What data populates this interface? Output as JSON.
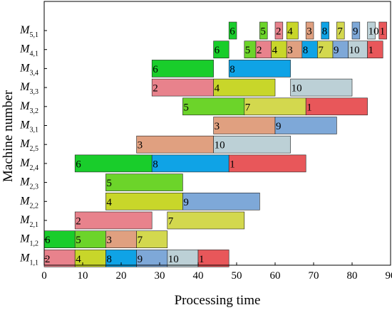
{
  "chart_data": {
    "type": "gantt",
    "xlabel": "Processing time",
    "ylabel": "Machine number",
    "xlim": [
      0,
      90
    ],
    "xticks": [
      0,
      10,
      20,
      30,
      40,
      50,
      60,
      70,
      80,
      90
    ],
    "grid": false,
    "job_colors": {
      "1": "#e8575a",
      "2": "#e8828c",
      "3": "#e0a080",
      "4": "#c8d62a",
      "5": "#6cd42a",
      "6": "#19cd2b",
      "7": "#d3d84e",
      "8": "#0fa3e6",
      "9": "#7ea8d8",
      "10": "#bcd0d6"
    },
    "machines": [
      {
        "name": "M",
        "sub": "5,1",
        "ops": [
          {
            "job": "6",
            "start": 48,
            "end": 50
          },
          {
            "job": "5",
            "start": 56,
            "end": 58
          },
          {
            "job": "2",
            "start": 60,
            "end": 62
          },
          {
            "job": "4",
            "start": 63,
            "end": 66
          },
          {
            "job": "3",
            "start": 68,
            "end": 70
          },
          {
            "job": "8",
            "start": 72,
            "end": 74
          },
          {
            "job": "7",
            "start": 76,
            "end": 78
          },
          {
            "job": "9",
            "start": 80,
            "end": 82
          },
          {
            "job": "10",
            "start": 84,
            "end": 86
          },
          {
            "job": "1",
            "start": 87,
            "end": 89
          }
        ]
      },
      {
        "name": "M",
        "sub": "4,1",
        "ops": [
          {
            "job": "6",
            "start": 44,
            "end": 48
          },
          {
            "job": "5",
            "start": 52,
            "end": 55
          },
          {
            "job": "2",
            "start": 55,
            "end": 59
          },
          {
            "job": "4",
            "start": 59,
            "end": 63
          },
          {
            "job": "3",
            "start": 63,
            "end": 67
          },
          {
            "job": "8",
            "start": 67,
            "end": 71
          },
          {
            "job": "7",
            "start": 71,
            "end": 75
          },
          {
            "job": "9",
            "start": 75,
            "end": 79
          },
          {
            "job": "10",
            "start": 79,
            "end": 84
          },
          {
            "job": "1",
            "start": 84,
            "end": 88
          }
        ]
      },
      {
        "name": "M",
        "sub": "3,4",
        "ops": [
          {
            "job": "6",
            "start": 28,
            "end": 44
          },
          {
            "job": "8",
            "start": 48,
            "end": 64
          }
        ]
      },
      {
        "name": "M",
        "sub": "3,3",
        "ops": [
          {
            "job": "2",
            "start": 28,
            "end": 44
          },
          {
            "job": "4",
            "start": 44,
            "end": 60
          },
          {
            "job": "10",
            "start": 64,
            "end": 80
          }
        ]
      },
      {
        "name": "M",
        "sub": "3,2",
        "ops": [
          {
            "job": "5",
            "start": 36,
            "end": 52
          },
          {
            "job": "7",
            "start": 52,
            "end": 68
          },
          {
            "job": "1",
            "start": 68,
            "end": 84
          }
        ]
      },
      {
        "name": "M",
        "sub": "3,1",
        "ops": [
          {
            "job": "3",
            "start": 44,
            "end": 60
          },
          {
            "job": "9",
            "start": 60,
            "end": 76
          }
        ]
      },
      {
        "name": "M",
        "sub": "2,5",
        "ops": [
          {
            "job": "3",
            "start": 24,
            "end": 44
          },
          {
            "job": "10",
            "start": 44,
            "end": 64
          }
        ]
      },
      {
        "name": "M",
        "sub": "2,4",
        "ops": [
          {
            "job": "6",
            "start": 8,
            "end": 28
          },
          {
            "job": "8",
            "start": 28,
            "end": 48
          },
          {
            "job": "1",
            "start": 48,
            "end": 68
          }
        ]
      },
      {
        "name": "M",
        "sub": "2,3",
        "ops": [
          {
            "job": "5",
            "start": 16,
            "end": 36
          }
        ]
      },
      {
        "name": "M",
        "sub": "2,2",
        "ops": [
          {
            "job": "4",
            "start": 16,
            "end": 36
          },
          {
            "job": "9",
            "start": 36,
            "end": 56
          }
        ]
      },
      {
        "name": "M",
        "sub": "2,1",
        "ops": [
          {
            "job": "2",
            "start": 8,
            "end": 28
          },
          {
            "job": "7",
            "start": 32,
            "end": 52
          }
        ]
      },
      {
        "name": "M",
        "sub": "1,2",
        "ops": [
          {
            "job": "6",
            "start": 0,
            "end": 8
          },
          {
            "job": "5",
            "start": 8,
            "end": 16
          },
          {
            "job": "3",
            "start": 16,
            "end": 24
          },
          {
            "job": "7",
            "start": 24,
            "end": 32
          }
        ]
      },
      {
        "name": "M",
        "sub": "1,1",
        "ops": [
          {
            "job": "2",
            "start": 0,
            "end": 8
          },
          {
            "job": "4",
            "start": 8,
            "end": 16
          },
          {
            "job": "8",
            "start": 16,
            "end": 24
          },
          {
            "job": "9",
            "start": 24,
            "end": 32
          },
          {
            "job": "10",
            "start": 32,
            "end": 40
          },
          {
            "job": "1",
            "start": 40,
            "end": 48
          }
        ]
      }
    ]
  }
}
